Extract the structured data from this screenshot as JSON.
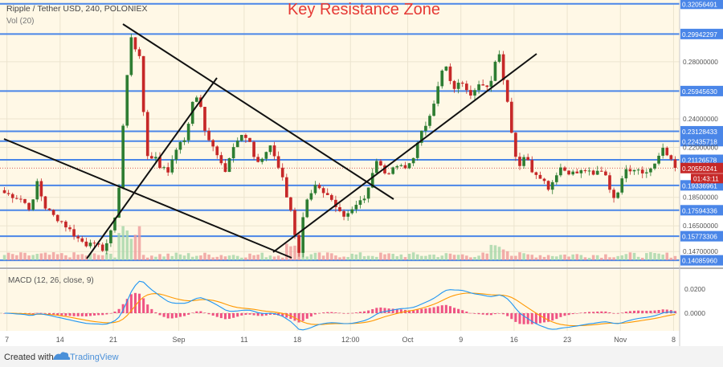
{
  "header": {
    "symbol_line": "Ripple / Tether USD, 240, POLONIEX",
    "volume_label": "Vol (20)",
    "annotation": "Key Resistance Zone"
  },
  "macd": {
    "label": "MACD (12, 26, close, 9)",
    "axis_ticks": [
      "0.0200",
      "0.0000"
    ]
  },
  "footer": {
    "created_with": "Created with",
    "brand": "TradingView"
  },
  "colors": {
    "background": "#fff8e6",
    "level_line": "#4a86e8",
    "up_candle": "#2e7d32",
    "down_candle": "#c62828",
    "annotation": "#e53935",
    "trend_line": "#111111",
    "macd_line": "#2196f3",
    "signal_line": "#ff9800",
    "histogram": "#e91e63"
  },
  "chart_data": {
    "type": "candlestick",
    "title": "Ripple / Tether USD, 240, POLONIEX",
    "y_scale": "linear",
    "ylim": [
      0.137,
      0.321
    ],
    "x_tick_labels": [
      "7",
      "14",
      "21",
      "Sep",
      "11",
      "18",
      "12:00",
      "Oct",
      "9",
      "16",
      "23",
      "Nov",
      "8"
    ],
    "y_tick_labels": [
      "0.28000000",
      "0.24000000",
      "0.22000000",
      "0.18500000",
      "0.16500000",
      "0.14700000"
    ],
    "levels": [
      {
        "value": 0.32056491,
        "label": "0.32056491"
      },
      {
        "value": 0.29942297,
        "label": "0.29942297"
      },
      {
        "value": 0.2594563,
        "label": "0.25945630"
      },
      {
        "value": 0.23128433,
        "label": "0.23128433"
      },
      {
        "value": 0.22435718,
        "label": "0.22435718"
      },
      {
        "value": 0.21126578,
        "label": "0.21126578"
      },
      {
        "value": 0.19336961,
        "label": "0.19336961"
      },
      {
        "value": 0.17594336,
        "label": "0.17594336"
      },
      {
        "value": 0.15773306,
        "label": "0.15773306"
      },
      {
        "value": 0.1408596,
        "label": "0.14085960"
      }
    ],
    "last_price": {
      "value": 0.20550241,
      "label": "0.20550241",
      "countdown": "01:43:11"
    },
    "path_points": [
      [
        0,
        0.188
      ],
      [
        2,
        0.186
      ],
      [
        4,
        0.184
      ],
      [
        6,
        0.178
      ],
      [
        7,
        0.182
      ],
      [
        8,
        0.196
      ],
      [
        9,
        0.186
      ],
      [
        10,
        0.178
      ],
      [
        12,
        0.172
      ],
      [
        14,
        0.168
      ],
      [
        16,
        0.162
      ],
      [
        18,
        0.156
      ],
      [
        20,
        0.152
      ],
      [
        21,
        0.155
      ],
      [
        22,
        0.151
      ],
      [
        24,
        0.149
      ],
      [
        25,
        0.153
      ],
      [
        26,
        0.16
      ],
      [
        27,
        0.172
      ],
      [
        28,
        0.192
      ],
      [
        29,
        0.235
      ],
      [
        30,
        0.27
      ],
      [
        31,
        0.298
      ],
      [
        32,
        0.29
      ],
      [
        33,
        0.282
      ],
      [
        34,
        0.245
      ],
      [
        35,
        0.215
      ],
      [
        36,
        0.212
      ],
      [
        37,
        0.214
      ],
      [
        38,
        0.207
      ],
      [
        39,
        0.205
      ],
      [
        40,
        0.203
      ],
      [
        41,
        0.212
      ],
      [
        42,
        0.22
      ],
      [
        43,
        0.222
      ],
      [
        44,
        0.226
      ],
      [
        45,
        0.235
      ],
      [
        46,
        0.252
      ],
      [
        47,
        0.256
      ],
      [
        48,
        0.248
      ],
      [
        49,
        0.232
      ],
      [
        50,
        0.224
      ],
      [
        51,
        0.22
      ],
      [
        52,
        0.216
      ],
      [
        53,
        0.21
      ],
      [
        54,
        0.203
      ],
      [
        55,
        0.214
      ],
      [
        56,
        0.222
      ],
      [
        57,
        0.225
      ],
      [
        58,
        0.228
      ],
      [
        59,
        0.226
      ],
      [
        60,
        0.222
      ],
      [
        61,
        0.214
      ],
      [
        62,
        0.21
      ],
      [
        63,
        0.212
      ],
      [
        64,
        0.217
      ],
      [
        65,
        0.22
      ],
      [
        66,
        0.214
      ],
      [
        67,
        0.206
      ],
      [
        68,
        0.2
      ],
      [
        69,
        0.186
      ],
      [
        70,
        0.175
      ],
      [
        71,
        0.16
      ],
      [
        72,
        0.147
      ],
      [
        73,
        0.17
      ],
      [
        74,
        0.182
      ],
      [
        75,
        0.186
      ],
      [
        76,
        0.192
      ],
      [
        77,
        0.19
      ],
      [
        78,
        0.187
      ],
      [
        79,
        0.186
      ],
      [
        80,
        0.183
      ],
      [
        81,
        0.18
      ],
      [
        82,
        0.176
      ],
      [
        83,
        0.172
      ],
      [
        84,
        0.175
      ],
      [
        85,
        0.177
      ],
      [
        86,
        0.179
      ],
      [
        87,
        0.182
      ],
      [
        88,
        0.185
      ],
      [
        89,
        0.19
      ],
      [
        90,
        0.204
      ],
      [
        91,
        0.211
      ],
      [
        92,
        0.207
      ],
      [
        93,
        0.202
      ],
      [
        94,
        0.203
      ],
      [
        95,
        0.204
      ],
      [
        96,
        0.207
      ],
      [
        97,
        0.206
      ],
      [
        98,
        0.205
      ],
      [
        99,
        0.209
      ],
      [
        100,
        0.214
      ],
      [
        101,
        0.222
      ],
      [
        102,
        0.23
      ],
      [
        103,
        0.236
      ],
      [
        104,
        0.244
      ],
      [
        105,
        0.252
      ],
      [
        106,
        0.262
      ],
      [
        107,
        0.273
      ],
      [
        108,
        0.276
      ],
      [
        109,
        0.265
      ],
      [
        110,
        0.262
      ],
      [
        111,
        0.264
      ],
      [
        112,
        0.266
      ],
      [
        113,
        0.262
      ],
      [
        114,
        0.258
      ],
      [
        115,
        0.262
      ],
      [
        116,
        0.264
      ],
      [
        117,
        0.262
      ],
      [
        118,
        0.261
      ],
      [
        119,
        0.268
      ],
      [
        120,
        0.28
      ],
      [
        121,
        0.287
      ],
      [
        122,
        0.268
      ],
      [
        123,
        0.252
      ],
      [
        124,
        0.232
      ],
      [
        125,
        0.214
      ],
      [
        126,
        0.208
      ],
      [
        127,
        0.214
      ],
      [
        128,
        0.21
      ],
      [
        129,
        0.204
      ],
      [
        130,
        0.202
      ],
      [
        131,
        0.2
      ],
      [
        132,
        0.196
      ],
      [
        133,
        0.192
      ],
      [
        134,
        0.196
      ],
      [
        135,
        0.202
      ],
      [
        136,
        0.206
      ],
      [
        137,
        0.204
      ],
      [
        138,
        0.203
      ],
      [
        139,
        0.202
      ],
      [
        140,
        0.202
      ],
      [
        141,
        0.203
      ],
      [
        142,
        0.204
      ],
      [
        143,
        0.202
      ],
      [
        144,
        0.2
      ],
      [
        145,
        0.203
      ],
      [
        146,
        0.204
      ],
      [
        147,
        0.201
      ],
      [
        148,
        0.192
      ],
      [
        149,
        0.183
      ],
      [
        150,
        0.19
      ],
      [
        151,
        0.2
      ],
      [
        152,
        0.206
      ],
      [
        153,
        0.204
      ],
      [
        154,
        0.206
      ],
      [
        155,
        0.204
      ],
      [
        156,
        0.202
      ],
      [
        157,
        0.203
      ],
      [
        158,
        0.205
      ],
      [
        159,
        0.207
      ],
      [
        160,
        0.214
      ],
      [
        161,
        0.22
      ],
      [
        162,
        0.216
      ],
      [
        163,
        0.21
      ],
      [
        164,
        0.205
      ]
    ]
  }
}
